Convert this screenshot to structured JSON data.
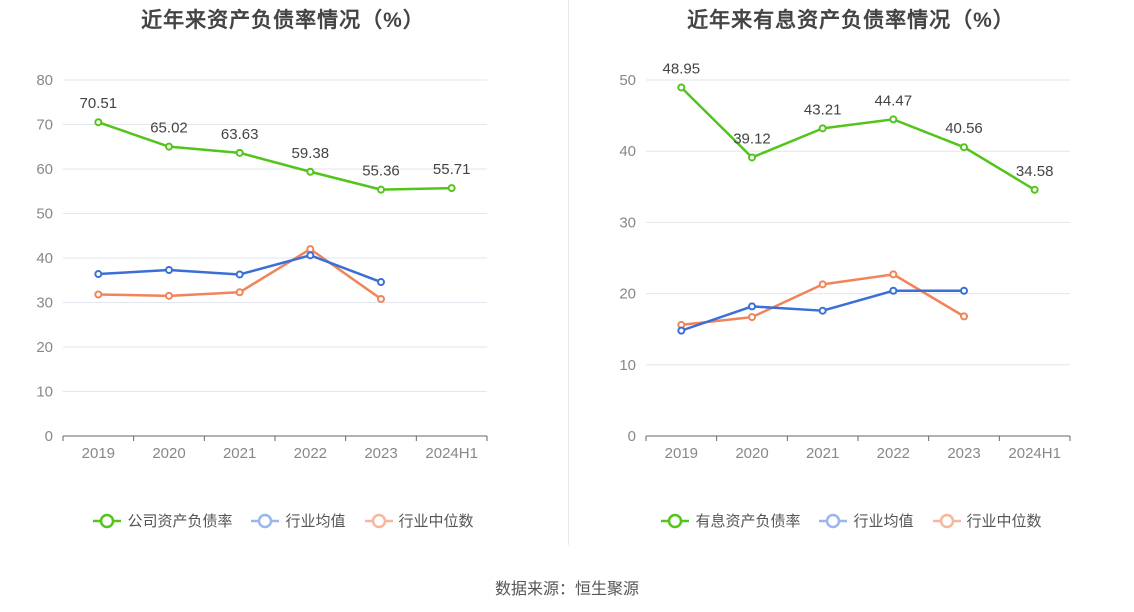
{
  "chart_data": [
    {
      "type": "line",
      "title": "近年来资产负债率情况（%）",
      "categories": [
        "2019",
        "2020",
        "2021",
        "2022",
        "2023",
        "2024H1"
      ],
      "ylim": [
        0,
        80
      ],
      "yticks": [
        0,
        10,
        20,
        30,
        40,
        50,
        60,
        70,
        80
      ],
      "grid": true,
      "legend_position": "bottom",
      "series": [
        {
          "name": "公司资产负债率",
          "color": "#52c41a",
          "values": [
            70.51,
            65.02,
            63.63,
            59.38,
            55.36,
            55.71
          ],
          "labels": [
            "70.51",
            "65.02",
            "63.63",
            "59.38",
            "55.36",
            "55.71"
          ],
          "show_labels": true
        },
        {
          "name": "行业均值",
          "color": "#3a6fd8",
          "values": [
            36.4,
            37.3,
            36.3,
            40.6,
            34.6,
            null
          ],
          "show_labels": false
        },
        {
          "name": "行业中位数",
          "color": "#f0845a",
          "values": [
            31.8,
            31.5,
            32.3,
            42.0,
            30.8,
            null
          ],
          "show_labels": false
        }
      ]
    },
    {
      "type": "line",
      "title": "近年来有息资产负债率情况（%）",
      "categories": [
        "2019",
        "2020",
        "2021",
        "2022",
        "2023",
        "2024H1"
      ],
      "ylim": [
        0,
        50
      ],
      "yticks": [
        0,
        10,
        20,
        30,
        40,
        50
      ],
      "grid": true,
      "legend_position": "bottom",
      "series": [
        {
          "name": "有息资产负债率",
          "color": "#52c41a",
          "values": [
            48.95,
            39.12,
            43.21,
            44.47,
            40.56,
            34.58
          ],
          "labels": [
            "48.95",
            "39.12",
            "43.21",
            "44.47",
            "40.56",
            "34.58"
          ],
          "show_labels": true
        },
        {
          "name": "行业均值",
          "color": "#3a6fd8",
          "values": [
            14.8,
            18.2,
            17.6,
            20.4,
            20.4,
            null
          ],
          "show_labels": false
        },
        {
          "name": "行业中位数",
          "color": "#f0845a",
          "values": [
            15.6,
            16.7,
            21.3,
            22.7,
            16.8,
            null
          ],
          "show_labels": false
        }
      ]
    }
  ],
  "legend_colors": {
    "green": "#52c41a",
    "blue": "#9bb5ef",
    "orange": "#f7b79c"
  },
  "source": "数据来源：恒生聚源"
}
